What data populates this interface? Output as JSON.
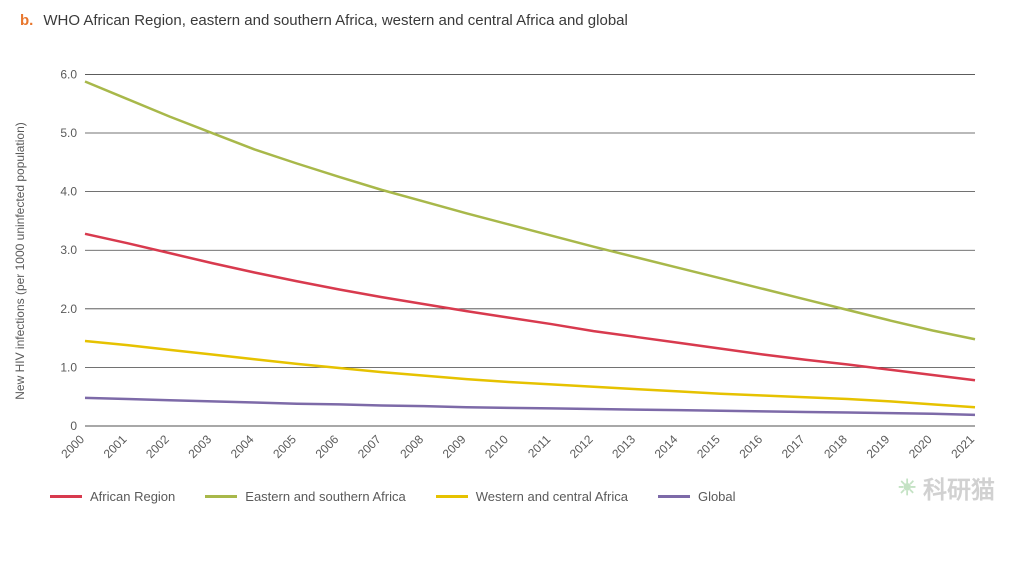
{
  "title": {
    "panel_letter": "b.",
    "text": "WHO African Region, eastern and southern Africa, western and central Africa and global",
    "letter_color": "#e8762d",
    "text_color": "#3a3a3a",
    "fontsize": 15
  },
  "chart": {
    "type": "line",
    "background_color": "#ffffff",
    "grid_color": "#444444",
    "grid_linewidth": 0.8,
    "ylabel": "New HIV  infections (per 1000 uninfected population)",
    "ylabel_fontsize": 12,
    "xlim": [
      2000,
      2021
    ],
    "ylim": [
      0,
      6.4
    ],
    "yticks": [
      0,
      1.0,
      2.0,
      3.0,
      4.0,
      5.0,
      6.0
    ],
    "ytick_labels": [
      "0",
      "1.0",
      "2.0",
      "3.0",
      "4.0",
      "5.0",
      "6.0"
    ],
    "xticks": [
      2000,
      2001,
      2002,
      2003,
      2004,
      2005,
      2006,
      2007,
      2008,
      2009,
      2010,
      2011,
      2012,
      2013,
      2014,
      2015,
      2016,
      2017,
      2018,
      2019,
      2020,
      2021
    ],
    "x_label_rotation": -45,
    "line_width": 2.5,
    "series": [
      {
        "name": "African Region",
        "color": "#d83a4e",
        "x": [
          2000,
          2001,
          2002,
          2003,
          2004,
          2005,
          2006,
          2007,
          2008,
          2009,
          2010,
          2011,
          2012,
          2013,
          2014,
          2015,
          2016,
          2017,
          2018,
          2019,
          2020,
          2021
        ],
        "y": [
          3.28,
          3.12,
          2.95,
          2.78,
          2.62,
          2.47,
          2.33,
          2.2,
          2.08,
          1.96,
          1.85,
          1.74,
          1.62,
          1.52,
          1.42,
          1.32,
          1.22,
          1.13,
          1.05,
          0.96,
          0.87,
          0.78
        ]
      },
      {
        "name": "Eastern and southern Africa",
        "color": "#a8b84a",
        "x": [
          2000,
          2001,
          2002,
          2003,
          2004,
          2005,
          2006,
          2007,
          2008,
          2009,
          2010,
          2011,
          2012,
          2013,
          2014,
          2015,
          2016,
          2017,
          2018,
          2019,
          2020,
          2021
        ],
        "y": [
          5.88,
          5.58,
          5.28,
          5.0,
          4.72,
          4.48,
          4.25,
          4.03,
          3.83,
          3.63,
          3.44,
          3.25,
          3.06,
          2.88,
          2.7,
          2.52,
          2.34,
          2.16,
          1.98,
          1.8,
          1.63,
          1.48
        ]
      },
      {
        "name": "Western and central Africa",
        "color": "#e6c200",
        "x": [
          2000,
          2001,
          2002,
          2003,
          2004,
          2005,
          2006,
          2007,
          2008,
          2009,
          2010,
          2011,
          2012,
          2013,
          2014,
          2015,
          2016,
          2017,
          2018,
          2019,
          2020,
          2021
        ],
        "y": [
          1.45,
          1.38,
          1.3,
          1.22,
          1.14,
          1.06,
          0.99,
          0.92,
          0.86,
          0.8,
          0.75,
          0.71,
          0.67,
          0.63,
          0.59,
          0.55,
          0.52,
          0.49,
          0.46,
          0.42,
          0.37,
          0.32
        ]
      },
      {
        "name": "Global",
        "color": "#7d6aa8",
        "x": [
          2000,
          2001,
          2002,
          2003,
          2004,
          2005,
          2006,
          2007,
          2008,
          2009,
          2010,
          2011,
          2012,
          2013,
          2014,
          2015,
          2016,
          2017,
          2018,
          2019,
          2020,
          2021
        ],
        "y": [
          0.48,
          0.46,
          0.44,
          0.42,
          0.4,
          0.38,
          0.37,
          0.35,
          0.34,
          0.32,
          0.31,
          0.3,
          0.29,
          0.28,
          0.27,
          0.26,
          0.25,
          0.24,
          0.23,
          0.22,
          0.21,
          0.19
        ]
      }
    ],
    "legend_position": "bottom"
  },
  "watermark": "科研猫"
}
